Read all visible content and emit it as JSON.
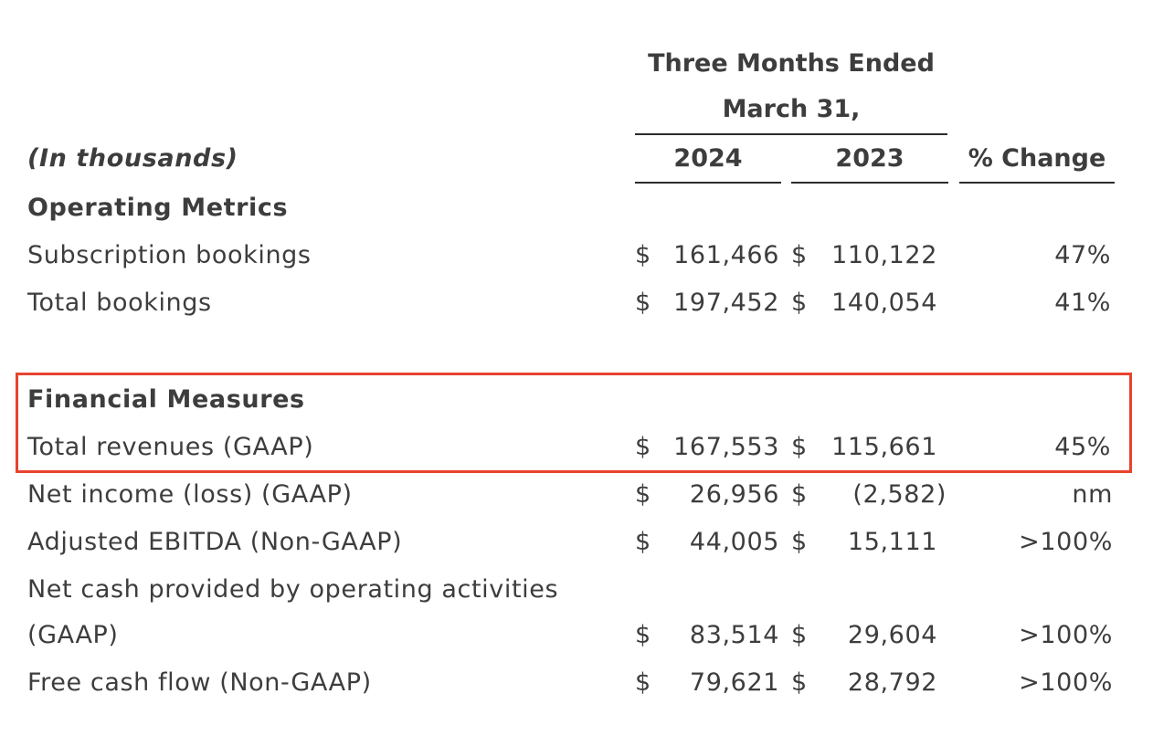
{
  "header": {
    "period_line1": "Three Months Ended",
    "period_line2": "March 31,",
    "unit_note": "(In thousands)",
    "col_2024": "2024",
    "col_2023": "2023",
    "col_change": "% Change"
  },
  "sections": {
    "operating": "Operating Metrics",
    "financial": "Financial Measures"
  },
  "currency_symbol": "$",
  "rows": [
    {
      "label": "Subscription bookings",
      "v2024": "161,466",
      "v2023": "110,122",
      "change": "47%"
    },
    {
      "label": "Total bookings",
      "v2024": "197,452",
      "v2023": "140,054",
      "change": "41%"
    },
    {
      "label": "Total revenues (GAAP)",
      "v2024": "167,553",
      "v2023": "115,661",
      "change": "45%"
    },
    {
      "label": "Net income (loss) (GAAP)",
      "v2024": "26,956",
      "v2023": "(2,582)",
      "change": "nm"
    },
    {
      "label": "Adjusted EBITDA (Non-GAAP)",
      "v2024": "44,005",
      "v2023": "15,111",
      "change": ">100%"
    },
    {
      "label_line1": "Net cash provided by operating activities",
      "label_line2": "(GAAP)",
      "v2024": "83,514",
      "v2023": "29,604",
      "change": ">100%"
    },
    {
      "label": "Free cash flow (Non-GAAP)",
      "v2024": "79,621",
      "v2023": "28,792",
      "change": ">100%"
    }
  ],
  "highlight_color": "#e8432d"
}
